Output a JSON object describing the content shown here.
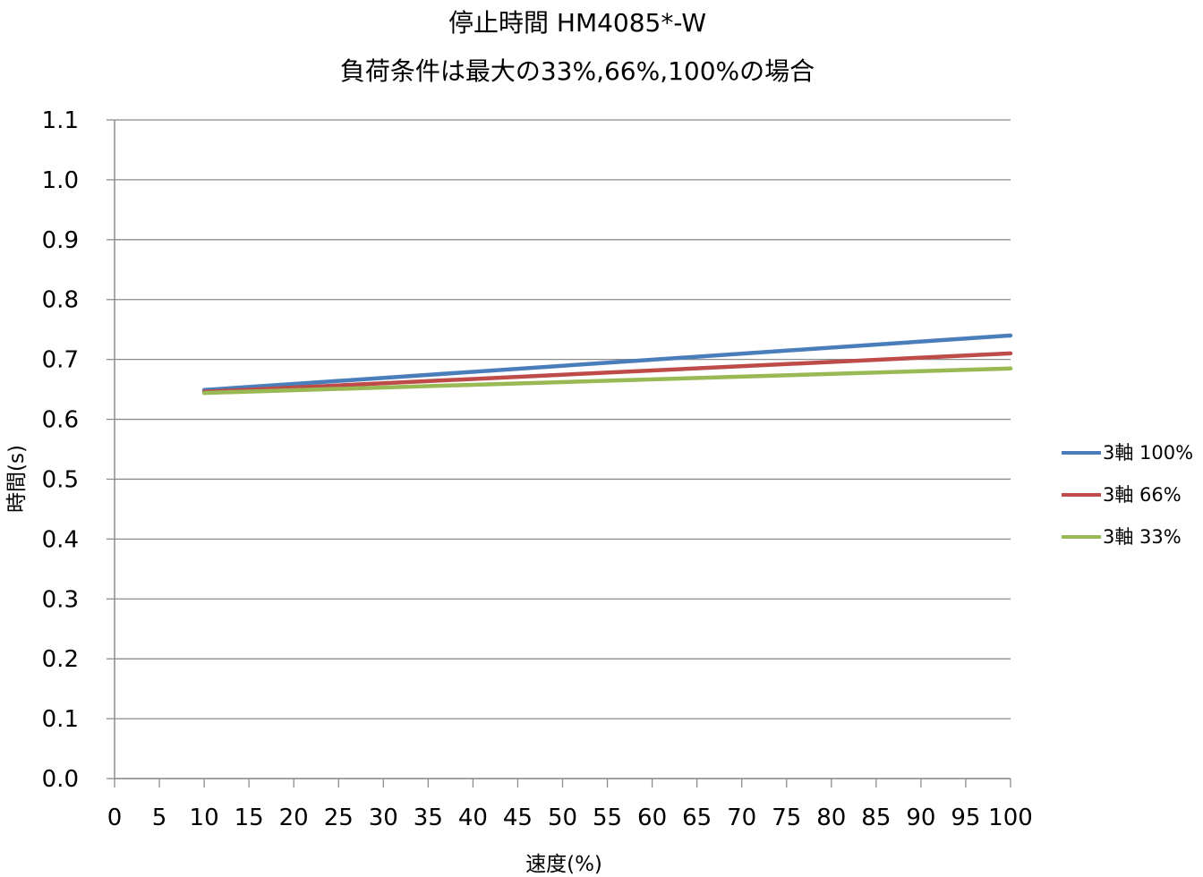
{
  "chart_data": {
    "type": "line",
    "title": "停止時間 HM4085*-W",
    "subtitle": "負荷条件は最大の33%,66%,100%の場合",
    "xlabel": "速度(%)",
    "ylabel": "時間(s)",
    "xlim": [
      0,
      100
    ],
    "ylim": [
      0.0,
      1.1
    ],
    "x_ticks": [
      "0",
      "5",
      "10",
      "15",
      "20",
      "25",
      "30",
      "35",
      "40",
      "45",
      "50",
      "55",
      "60",
      "65",
      "70",
      "75",
      "80",
      "85",
      "90",
      "95",
      "100"
    ],
    "y_ticks": [
      "0.0",
      "0.1",
      "0.2",
      "0.3",
      "0.4",
      "0.5",
      "0.6",
      "0.7",
      "0.8",
      "0.9",
      "1.0",
      "1.1"
    ],
    "grid": true,
    "legend_position": "right",
    "series": [
      {
        "name": "3軸 100%",
        "color": "#4a7ebb",
        "x": [
          10,
          100
        ],
        "y": [
          0.649,
          0.74
        ]
      },
      {
        "name": "3軸 66%",
        "color": "#be4b48",
        "x": [
          10,
          100
        ],
        "y": [
          0.646,
          0.71
        ]
      },
      {
        "name": "3軸 33%",
        "color": "#98b954",
        "x": [
          10,
          100
        ],
        "y": [
          0.644,
          0.685
        ]
      }
    ]
  }
}
